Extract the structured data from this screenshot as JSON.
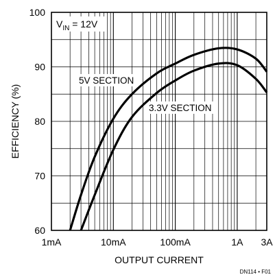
{
  "chart_data": {
    "type": "line",
    "xscale": "log",
    "xlim": [
      0.001,
      3
    ],
    "ylim": [
      60,
      100
    ],
    "grid": true,
    "xlabel": "OUTPUT CURRENT",
    "ylabel": "EFFICIENCY (%)",
    "xtick_values": [
      0.001,
      0.01,
      0.1,
      1,
      3
    ],
    "xtick_labels": [
      "1mA",
      "10mA",
      "100mA",
      "1A",
      "3A"
    ],
    "yticks": [
      60,
      70,
      80,
      90,
      100
    ],
    "annotation": {
      "base": "V",
      "sub": "IN",
      "rest": " = 12V"
    },
    "series": [
      {
        "name": "5V SECTION",
        "color": "#000000",
        "x": [
          0.002,
          0.003,
          0.005,
          0.01,
          0.02,
          0.05,
          0.1,
          0.2,
          0.5,
          1,
          2,
          3
        ],
        "y": [
          60,
          66.5,
          73.5,
          80.5,
          85,
          88.8,
          90.6,
          92.2,
          93.4,
          93.2,
          91.5,
          89.1
        ]
      },
      {
        "name": "3.3V SECTION",
        "color": "#000000",
        "x": [
          0.003,
          0.005,
          0.01,
          0.02,
          0.05,
          0.1,
          0.2,
          0.5,
          1,
          2,
          3
        ],
        "y": [
          60,
          66.5,
          74.8,
          80.8,
          85.2,
          87.5,
          89.3,
          90.6,
          90.3,
          87.8,
          85.3
        ]
      }
    ],
    "figure_id": "DN114 • F01"
  }
}
